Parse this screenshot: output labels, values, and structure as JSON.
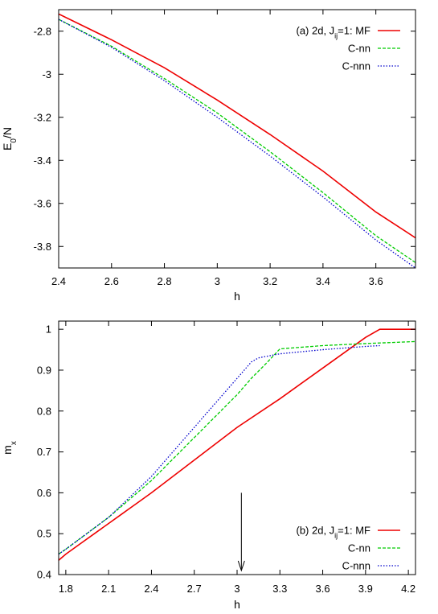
{
  "chart_data": [
    {
      "type": "line",
      "title_parts": [
        "(a) 2d, J",
        "ij",
        "=1: MF"
      ],
      "xlabel": "h",
      "ylabel_parts": [
        "E",
        "0",
        "/N"
      ],
      "xlim": [
        2.4,
        3.75
      ],
      "ylim": [
        -3.9,
        -2.7
      ],
      "xticks": [
        2.4,
        2.6,
        2.8,
        3,
        3.2,
        3.4,
        3.6
      ],
      "xtick_labels": [
        "2.4",
        "2.6",
        "2.8",
        "3",
        "3.2",
        "3.4",
        "3.6"
      ],
      "yticks": [
        -3.8,
        -3.6,
        -3.4,
        -3.2,
        -3,
        -2.8
      ],
      "ytick_labels": [
        "-3.8",
        "-3.6",
        "-3.4",
        "-3.2",
        "-3",
        "-2.8"
      ],
      "grid": false,
      "legend_position": "top-right",
      "series": [
        {
          "name": "MF",
          "color": "#ee0000",
          "dash": "solid",
          "x": [
            2.4,
            2.6,
            2.8,
            3.0,
            3.2,
            3.4,
            3.6,
            3.75
          ],
          "y": [
            -2.72,
            -2.84,
            -2.97,
            -3.12,
            -3.28,
            -3.45,
            -3.64,
            -3.76
          ]
        },
        {
          "name": "C-nn",
          "color": "#00cc00",
          "dash": "dashed",
          "x": [
            2.4,
            2.6,
            2.8,
            3.0,
            3.2,
            3.4,
            3.6,
            3.75
          ],
          "y": [
            -2.745,
            -2.87,
            -3.02,
            -3.18,
            -3.36,
            -3.55,
            -3.75,
            -3.875
          ]
        },
        {
          "name": "C-nnn",
          "color": "#0000cc",
          "dash": "dotted",
          "x": [
            2.4,
            2.6,
            2.8,
            3.0,
            3.2,
            3.4,
            3.6,
            3.75
          ],
          "y": [
            -2.745,
            -2.875,
            -3.03,
            -3.2,
            -3.38,
            -3.57,
            -3.77,
            -3.9
          ]
        }
      ]
    },
    {
      "type": "line",
      "title_parts": [
        "(b) 2d, J",
        "ij",
        "=1: MF"
      ],
      "xlabel": "h",
      "ylabel_parts": [
        "m",
        "x"
      ],
      "xlim": [
        1.75,
        4.25
      ],
      "ylim": [
        0.4,
        1.02
      ],
      "xticks": [
        1.8,
        2.1,
        2.4,
        2.7,
        3,
        3.3,
        3.6,
        3.9,
        4.2
      ],
      "xtick_labels": [
        "1.8",
        "2.1",
        "2.4",
        "2.7",
        "3",
        "3.3",
        "3.6",
        "3.9",
        "4.2"
      ],
      "yticks": [
        0.4,
        0.5,
        0.6,
        0.7,
        0.8,
        0.9,
        1
      ],
      "ytick_labels": [
        "0.4",
        "0.5",
        "0.6",
        "0.7",
        "0.8",
        "0.9",
        "1"
      ],
      "grid": false,
      "legend_position": "bottom-right",
      "annotation": {
        "type": "arrow",
        "x": 3.03,
        "y_start": 0.6,
        "y_end": 0.41
      },
      "series": [
        {
          "name": "MF",
          "color": "#ee0000",
          "dash": "solid",
          "x": [
            1.75,
            1.8,
            1.9,
            2.0,
            2.1,
            2.2,
            2.3,
            2.4,
            2.7,
            3.0,
            3.3,
            3.6,
            3.9,
            4.0,
            4.25
          ],
          "y": [
            0.435,
            0.45,
            0.475,
            0.5,
            0.525,
            0.55,
            0.575,
            0.6,
            0.68,
            0.76,
            0.83,
            0.905,
            0.98,
            1.0,
            1.0
          ]
        },
        {
          "name": "C-nn",
          "color": "#00cc00",
          "dash": "dashed",
          "x": [
            1.75,
            1.8,
            2.1,
            2.4,
            2.7,
            3.0,
            3.1,
            3.2,
            3.3,
            3.6,
            3.9,
            4.25
          ],
          "y": [
            0.45,
            0.462,
            0.54,
            0.63,
            0.735,
            0.84,
            0.88,
            0.915,
            0.952,
            0.96,
            0.965,
            0.97
          ]
        },
        {
          "name": "C-nnn",
          "color": "#0000cc",
          "dash": "dotted",
          "x": [
            1.75,
            1.8,
            2.1,
            2.4,
            2.6,
            2.8,
            3.0,
            3.1,
            3.15,
            3.3,
            3.6,
            3.9,
            4.0
          ],
          "y": [
            0.45,
            0.462,
            0.54,
            0.64,
            0.72,
            0.8,
            0.88,
            0.92,
            0.93,
            0.94,
            0.95,
            0.958,
            0.96
          ]
        }
      ]
    }
  ]
}
